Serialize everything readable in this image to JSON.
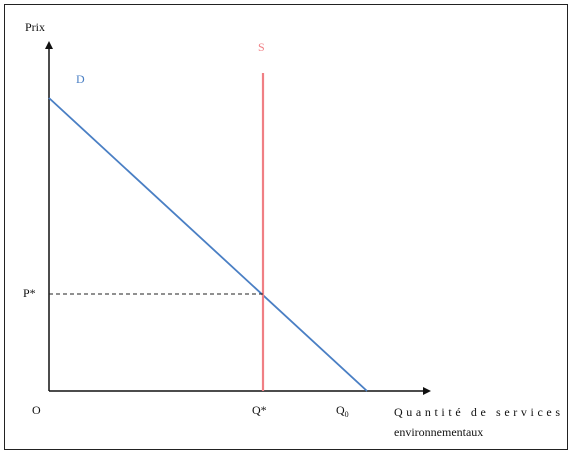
{
  "diagram": {
    "y_axis_label": "Prix",
    "x_axis_label_line1": "Quantité de services",
    "x_axis_label_line2": "environnementaux",
    "origin_label": "O",
    "demand_label": "D",
    "supply_label": "S",
    "price_label": "P*",
    "quantity_label": "Q*",
    "q_intercept_main": "Q",
    "q_intercept_sub": "0",
    "colors": {
      "demand": "#4a7fc4",
      "supply": "#f07f84",
      "axes": "#111111",
      "guide": "#222222"
    }
  }
}
